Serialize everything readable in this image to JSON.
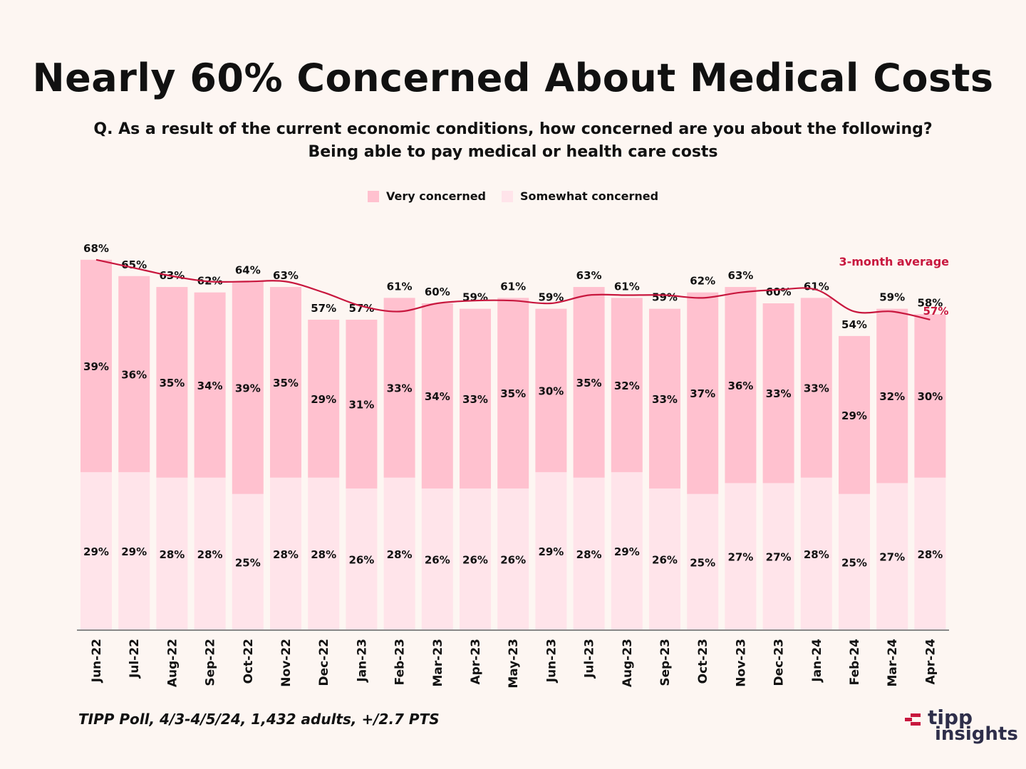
{
  "header": {
    "title": "Nearly 60% Concerned About Medical Costs",
    "question_line1": "Q. As a result of the current economic conditions, how concerned are you about the following?",
    "question_line2": "Being able to pay medical or health care costs"
  },
  "legend": {
    "very": "Very concerned",
    "somewhat": "Somewhat concerned"
  },
  "colors": {
    "very": "#ffc1cf",
    "somewhat": "#ffe4ea",
    "line": "#c8173e",
    "background": "#fdf6f2",
    "axis": "#888888"
  },
  "footer": {
    "source": "TIPP Poll, 4/3-4/5/24, 1,432 adults, +/2.7 PTS",
    "logo_line1": "tipp",
    "logo_line2": "insights"
  },
  "chart_data": {
    "type": "bar",
    "stacked": true,
    "categories": [
      "Jun-22",
      "Jul-22",
      "Aug-22",
      "Sep-22",
      "Oct-22",
      "Nov-22",
      "Dec-22",
      "Jan-23",
      "Feb-23",
      "Mar-23",
      "Apr-23",
      "May-23",
      "Jun-23",
      "Jul-23",
      "Aug-23",
      "Sep-23",
      "Oct-23",
      "Nov-23",
      "Dec-23",
      "Jan-24",
      "Feb-24",
      "Mar-24",
      "Apr-24"
    ],
    "series": [
      {
        "name": "Somewhat concerned",
        "values": [
          29,
          29,
          28,
          28,
          25,
          28,
          28,
          26,
          28,
          26,
          26,
          26,
          29,
          28,
          29,
          26,
          25,
          27,
          27,
          28,
          25,
          27,
          28
        ]
      },
      {
        "name": "Very concerned",
        "values": [
          39,
          36,
          35,
          34,
          39,
          35,
          29,
          31,
          33,
          34,
          33,
          35,
          30,
          35,
          32,
          33,
          37,
          36,
          33,
          33,
          29,
          32,
          30
        ]
      }
    ],
    "totals": [
      68,
      65,
      63,
      62,
      64,
      63,
      57,
      57,
      61,
      60,
      59,
      61,
      59,
      63,
      61,
      59,
      62,
      63,
      60,
      61,
      54,
      59,
      58
    ],
    "line": {
      "name": "3-month average",
      "values": [
        68,
        66.5,
        65,
        64,
        64,
        64,
        62,
        59.5,
        58.5,
        60,
        60.5,
        60.5,
        60,
        61.5,
        61.5,
        61.5,
        61,
        62,
        62.5,
        62.5,
        58.5,
        58.5,
        57
      ],
      "end_label": "57%"
    },
    "ylim": [
      0,
      70
    ],
    "xlabel": "",
    "ylabel": ""
  }
}
